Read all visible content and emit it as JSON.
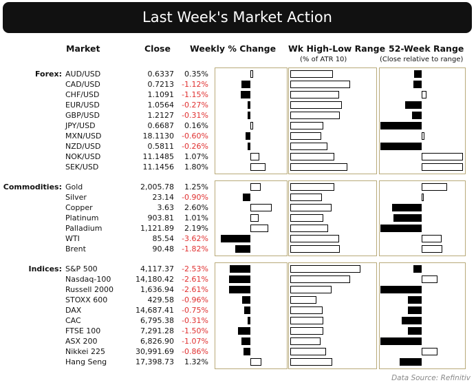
{
  "title": "Last Week's Market Action",
  "headers": {
    "market": "Market",
    "close": "Close",
    "weekly": "Weekly % Change",
    "range": "Wk High-Low Range",
    "range_sub": "(% of ATR 10)",
    "w52": "52-Week Range",
    "w52_sub": "(Close relative to range)"
  },
  "source": "Data Source: Refinitiv",
  "colors": {
    "negative_text": "#e03030",
    "panel_border": "#b8a978",
    "title_bg": "#111111"
  },
  "chart_data": {
    "type": "table",
    "groups": [
      {
        "label": "Forex:",
        "rows": [
          {
            "market": "AUD/USD",
            "close": "0.6337",
            "weekly": "0.35%",
            "weekly_value": 0.35,
            "range": "100.0%",
            "range_value": 100.0,
            "range_highlight": true,
            "w52": 0.41
          },
          {
            "market": "CAD/USD",
            "close": "0.7213",
            "weekly": "-1.12%",
            "weekly_value": -1.12,
            "range": "140.7%",
            "range_value": 140.7,
            "range_highlight": true,
            "w52": 0.4
          },
          {
            "market": "CHF/USD",
            "close": "1.1091",
            "weekly": "-1.15%",
            "weekly_value": -1.15,
            "range": "114.5%",
            "range_value": 114.5,
            "range_highlight": true,
            "w52": 0.56
          },
          {
            "market": "EUR/USD",
            "close": "1.0564",
            "weekly": "-0.27%",
            "weekly_value": -0.27,
            "range": "121.2%",
            "range_value": 121.2,
            "range_highlight": true,
            "w52": 0.3
          },
          {
            "market": "GBP/USD",
            "close": "1.2127",
            "weekly": "-0.31%",
            "weekly_value": -0.31,
            "range": "116.5%",
            "range_value": 116.5,
            "range_highlight": true,
            "w52": 0.38
          },
          {
            "market": "JPY/USD",
            "close": "0.6687",
            "weekly": "0.16%",
            "weekly_value": 0.16,
            "range": "78.0%",
            "range_value": 78.0,
            "range_highlight": false,
            "w52": 0.0
          },
          {
            "market": "MXN/USD",
            "close": "18.1130",
            "weekly": "-0.60%",
            "weekly_value": -0.6,
            "range": "72.8%",
            "range_value": 72.8,
            "range_highlight": false,
            "w52": 0.53
          },
          {
            "market": "NZD/USD",
            "close": "0.5811",
            "weekly": "-0.26%",
            "weekly_value": -0.26,
            "range": "87.6%",
            "range_value": 87.6,
            "range_highlight": false,
            "w52": 0.0
          },
          {
            "market": "NOK/USD",
            "close": "11.1485",
            "weekly": "1.07%",
            "weekly_value": 1.07,
            "range": "103.0%",
            "range_value": 103.0,
            "range_highlight": true,
            "w52": 1.0
          },
          {
            "market": "SEK/USD",
            "close": "11.1456",
            "weekly": "1.80%",
            "weekly_value": 1.8,
            "range": "133.8%",
            "range_value": 133.8,
            "range_highlight": true,
            "w52": 1.0
          }
        ]
      },
      {
        "label": "Commodities:",
        "rows": [
          {
            "market": "Gold",
            "close": "2,005.78",
            "weekly": "1.25%",
            "weekly_value": 1.25,
            "range": "103.4%",
            "range_value": 103.4,
            "range_highlight": true,
            "w52": 0.81
          },
          {
            "market": "Silver",
            "close": "23.14",
            "weekly": "-0.90%",
            "weekly_value": -0.9,
            "range": "73.4%",
            "range_value": 73.4,
            "range_highlight": false,
            "w52": 0.52
          },
          {
            "market": "Copper",
            "close": "3.63",
            "weekly": "2.60%",
            "weekly_value": 2.6,
            "range": "97.1%",
            "range_value": 97.1,
            "range_highlight": false,
            "w52": 0.14
          },
          {
            "market": "Platinum",
            "close": "903.81",
            "weekly": "1.01%",
            "weekly_value": 1.01,
            "range": "77.5%",
            "range_value": 77.5,
            "range_highlight": false,
            "w52": 0.16
          },
          {
            "market": "Palladium",
            "close": "1,121.89",
            "weekly": "2.19%",
            "weekly_value": 2.19,
            "range": "88.5%",
            "range_value": 88.5,
            "range_highlight": false,
            "w52": 0.0
          },
          {
            "market": "WTI",
            "close": "85.54",
            "weekly": "-3.62%",
            "weekly_value": -3.62,
            "range": "113.9%",
            "range_value": 113.9,
            "range_highlight": true,
            "w52": 0.74
          },
          {
            "market": "Brent",
            "close": "90.48",
            "weekly": "-1.82%",
            "weekly_value": -1.82,
            "range": "115.7%",
            "range_value": 115.7,
            "range_highlight": true,
            "w52": 0.75
          }
        ]
      },
      {
        "label": "Indices:",
        "rows": [
          {
            "market": "S&P 500",
            "close": "4,117.37",
            "weekly": "-2.53%",
            "weekly_value": -2.53,
            "range": "163.9%",
            "range_value": 163.9,
            "range_highlight": true,
            "w52": 0.4
          },
          {
            "market": "Nasdaq-100",
            "close": "14,180.42",
            "weekly": "-2.61%",
            "weekly_value": -2.61,
            "range": "140.4%",
            "range_value": 140.4,
            "range_highlight": true,
            "w52": 0.69
          },
          {
            "market": "Russell 2000",
            "close": "1,636.94",
            "weekly": "-2.61%",
            "weekly_value": -2.61,
            "range": "96.8%",
            "range_value": 96.8,
            "range_highlight": false,
            "w52": 0.0
          },
          {
            "market": "STOXX 600",
            "close": "429.58",
            "weekly": "-0.96%",
            "weekly_value": -0.96,
            "range": "61.0%",
            "range_value": 61.0,
            "range_highlight": false,
            "w52": 0.33
          },
          {
            "market": "DAX",
            "close": "14,687.41",
            "weekly": "-0.75%",
            "weekly_value": -0.75,
            "range": "75.8%",
            "range_value": 75.8,
            "range_highlight": false,
            "w52": 0.33
          },
          {
            "market": "CAC",
            "close": "6,795.38",
            "weekly": "-0.31%",
            "weekly_value": -0.31,
            "range": "77.6%",
            "range_value": 77.6,
            "range_highlight": false,
            "w52": 0.26
          },
          {
            "market": "FTSE 100",
            "close": "7,291.28",
            "weekly": "-1.50%",
            "weekly_value": -1.5,
            "range": "76.8%",
            "range_value": 76.8,
            "range_highlight": false,
            "w52": 0.33
          },
          {
            "market": "ASX 200",
            "close": "6,826.90",
            "weekly": "-1.07%",
            "weekly_value": -1.07,
            "range": "70.5%",
            "range_value": 70.5,
            "range_highlight": false,
            "w52": 0.0
          },
          {
            "market": "Nikkei 225",
            "close": "30,991.69",
            "weekly": "-0.86%",
            "weekly_value": -0.86,
            "range": "83.1%",
            "range_value": 83.1,
            "range_highlight": false,
            "w52": 0.69
          },
          {
            "market": "Hang Seng",
            "close": "17,398.73",
            "weekly": "1.32%",
            "weekly_value": 1.32,
            "range": "98.1%",
            "range_value": 98.1,
            "range_highlight": false,
            "w52": 0.23
          }
        ]
      }
    ],
    "weekly_axis_range": [
      -4.5,
      4.5
    ],
    "range_axis_max": 175,
    "w52_scale": [
      -1,
      1
    ]
  }
}
